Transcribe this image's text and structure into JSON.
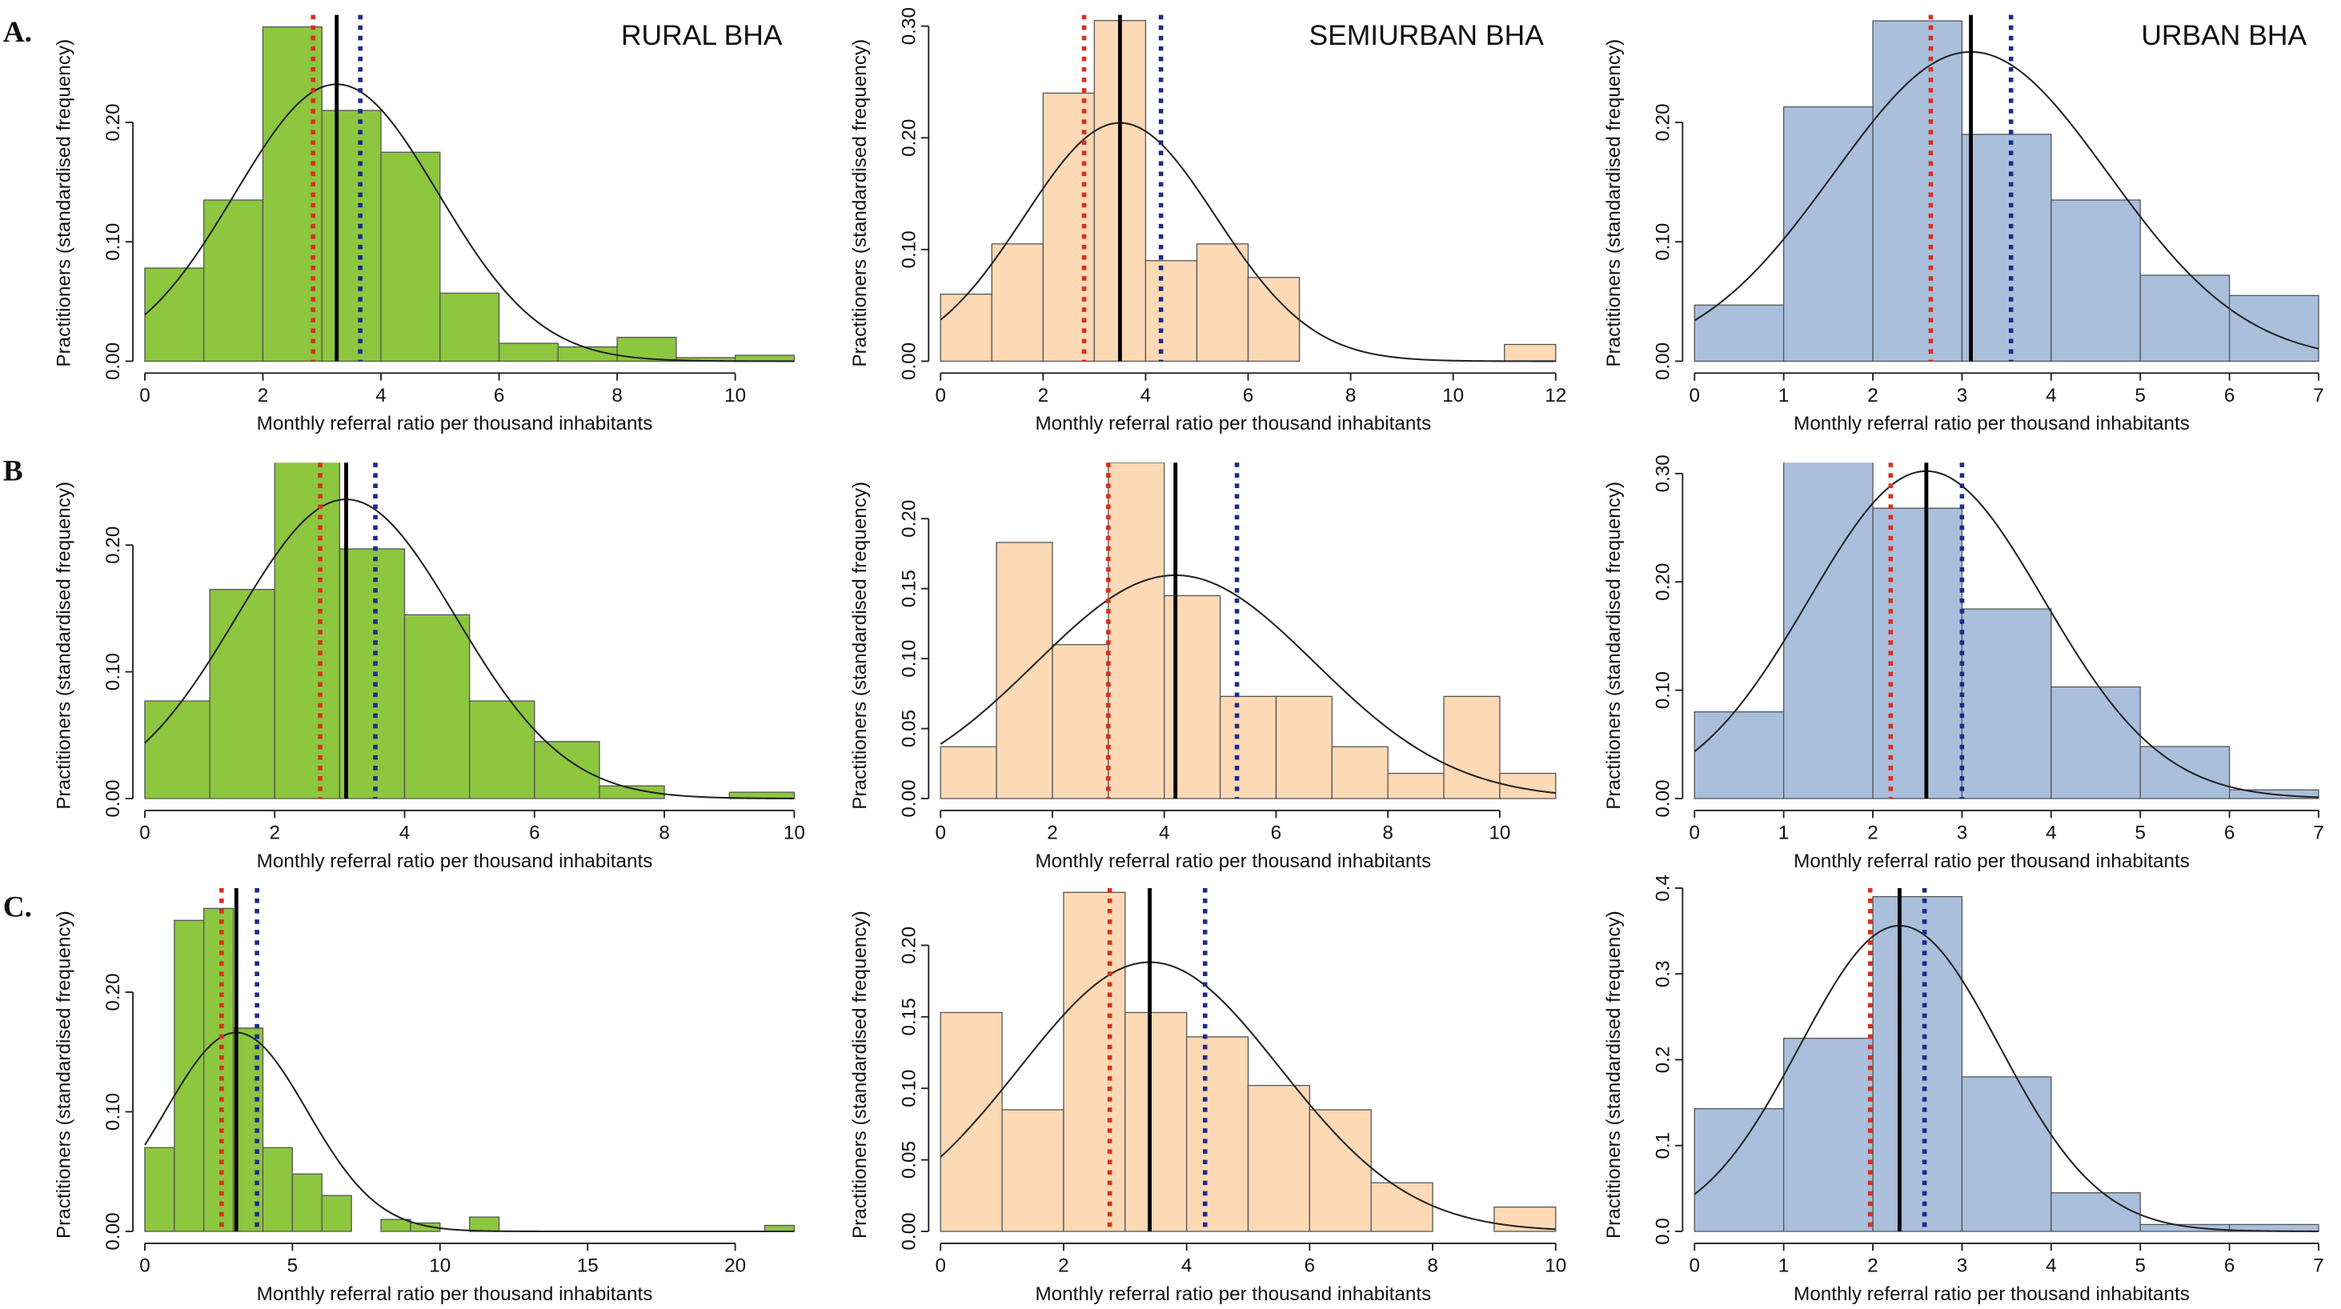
{
  "panels": [
    "A.",
    "B",
    "C."
  ],
  "chart_data": [
    {
      "type": "histogram",
      "title": "RURAL BHA",
      "xlabel": "Monthly referral ratio per thousand inhabitants",
      "ylabel": "Practitioners (standardised frequency)",
      "color": "#8dc63f",
      "bins": [
        0,
        1,
        2,
        3,
        4,
        5,
        6,
        7,
        8,
        9,
        10,
        11
      ],
      "values": [
        0.078,
        0.135,
        0.28,
        0.21,
        0.175,
        0.057,
        0.015,
        0.012,
        0.02,
        0.003,
        0.005
      ],
      "xlim": [
        0,
        11
      ],
      "xticks": [
        0,
        2,
        4,
        6,
        8,
        10
      ],
      "ylim": [
        0,
        0.29
      ],
      "yticks": [
        {
          "value": 0,
          "label": "0.00"
        },
        {
          "value": 0.1,
          "label": "0.10"
        },
        {
          "value": 0.2,
          "label": "0.20"
        }
      ],
      "reference_lines": [
        {
          "color": "#d7301f",
          "x": 2.85,
          "dotted": true
        },
        {
          "color": "#000000",
          "x": 3.25,
          "dotted": false
        },
        {
          "color": "#1f2a8a",
          "x": 3.65,
          "dotted": true
        }
      ],
      "normal_curve": {
        "mean": 3.25,
        "sd": 1.72
      }
    },
    {
      "type": "histogram",
      "title": "SEMIURBAN BHA",
      "xlabel": "Monthly referral ratio per thousand inhabitants",
      "ylabel": "Practitioners (standardised frequency)",
      "color": "#fdd9b5",
      "bins": [
        0,
        1,
        2,
        3,
        4,
        5,
        6,
        7,
        8,
        9,
        10,
        11,
        12
      ],
      "values": [
        0.06,
        0.105,
        0.24,
        0.305,
        0.09,
        0.105,
        0.075,
        0,
        0,
        0,
        0,
        0.015
      ],
      "xlim": [
        0,
        12
      ],
      "xticks": [
        0,
        2,
        4,
        6,
        8,
        10,
        12
      ],
      "ylim": [
        0,
        0.31
      ],
      "yticks": [
        {
          "value": 0,
          "label": "0.00"
        },
        {
          "value": 0.1,
          "label": "0.10"
        },
        {
          "value": 0.2,
          "label": "0.20"
        },
        {
          "value": 0.3,
          "label": "0.30"
        }
      ],
      "reference_lines": [
        {
          "color": "#d7301f",
          "x": 2.8,
          "dotted": true
        },
        {
          "color": "#000000",
          "x": 3.5,
          "dotted": false
        },
        {
          "color": "#1f2a8a",
          "x": 4.3,
          "dotted": true
        }
      ],
      "normal_curve": {
        "mean": 3.5,
        "sd": 1.87
      }
    },
    {
      "type": "histogram",
      "title": "URBAN BHA",
      "xlabel": "Monthly referral ratio per thousand inhabitants",
      "ylabel": "Practitioners (standardised frequency)",
      "color": "#a9bfdc",
      "bins": [
        0,
        1,
        2,
        3,
        4,
        5,
        6,
        7
      ],
      "values": [
        0.047,
        0.213,
        0.285,
        0.19,
        0.135,
        0.072,
        0.055
      ],
      "xlim": [
        0,
        7
      ],
      "xticks": [
        0,
        1,
        2,
        3,
        4,
        5,
        6,
        7
      ],
      "ylim": [
        0,
        0.29
      ],
      "yticks": [
        {
          "value": 0,
          "label": "0.00"
        },
        {
          "value": 0.1,
          "label": "0.10"
        },
        {
          "value": 0.2,
          "label": "0.20"
        }
      ],
      "reference_lines": [
        {
          "color": "#d7301f",
          "x": 2.65,
          "dotted": true
        },
        {
          "color": "#000000",
          "x": 3.1,
          "dotted": false
        },
        {
          "color": "#1f2a8a",
          "x": 3.55,
          "dotted": true
        }
      ],
      "normal_curve": {
        "mean": 3.1,
        "sd": 1.54
      }
    },
    {
      "type": "histogram",
      "xlabel": "Monthly referral ratio per thousand inhabitants",
      "ylabel": "Practitioners (standardised frequency)",
      "color": "#8dc63f",
      "bins": [
        0,
        1,
        2,
        3,
        4,
        5,
        6,
        7,
        8,
        9,
        10
      ],
      "values": [
        0.077,
        0.165,
        0.27,
        0.197,
        0.145,
        0.077,
        0.045,
        0.01,
        0,
        0.005
      ],
      "xlim": [
        0,
        10
      ],
      "xticks": [
        0,
        2,
        4,
        6,
        8,
        10
      ],
      "ylim": [
        0,
        0.265
      ],
      "yticks": [
        {
          "value": 0,
          "label": "0.00"
        },
        {
          "value": 0.1,
          "label": "0.10"
        },
        {
          "value": 0.2,
          "label": "0.20"
        }
      ],
      "reference_lines": [
        {
          "color": "#d7301f",
          "x": 2.7,
          "dotted": true
        },
        {
          "color": "#000000",
          "x": 3.1,
          "dotted": false
        },
        {
          "color": "#1f2a8a",
          "x": 3.55,
          "dotted": true
        }
      ],
      "normal_curve": {
        "mean": 3.1,
        "sd": 1.69
      }
    },
    {
      "type": "histogram",
      "xlabel": "Monthly referral ratio per thousand inhabitants",
      "ylabel": "Practitioners (standardised frequency)",
      "color": "#fdd9b5",
      "bins": [
        0,
        1,
        2,
        3,
        4,
        5,
        6,
        7,
        8,
        9,
        10,
        11
      ],
      "values": [
        0.037,
        0.183,
        0.11,
        0.24,
        0.145,
        0.073,
        0.073,
        0.037,
        0.018,
        0.073,
        0.018
      ],
      "xlim": [
        0,
        11
      ],
      "xticks": [
        0,
        2,
        4,
        6,
        8,
        10
      ],
      "ylim": [
        0,
        0.24
      ],
      "yticks": [
        {
          "value": 0,
          "label": "0.00"
        },
        {
          "value": 0.05,
          "label": "0.05"
        },
        {
          "value": 0.1,
          "label": "0.10"
        },
        {
          "value": 0.15,
          "label": "0.15"
        },
        {
          "value": 0.2,
          "label": "0.20"
        }
      ],
      "reference_lines": [
        {
          "color": "#d7301f",
          "x": 3.0,
          "dotted": true
        },
        {
          "color": "#000000",
          "x": 4.2,
          "dotted": false
        },
        {
          "color": "#1f2a8a",
          "x": 5.3,
          "dotted": true
        }
      ],
      "normal_curve": {
        "mean": 4.2,
        "sd": 2.5
      }
    },
    {
      "type": "histogram",
      "xlabel": "Monthly referral ratio per thousand inhabitants",
      "ylabel": "Practitioners (standardised frequency)",
      "color": "#a9bfdc",
      "bins": [
        0,
        1,
        2,
        3,
        4,
        5,
        6,
        7
      ],
      "values": [
        0.08,
        0.32,
        0.268,
        0.175,
        0.103,
        0.048,
        0.008
      ],
      "xlim": [
        0,
        7
      ],
      "xticks": [
        0,
        1,
        2,
        3,
        4,
        5,
        6,
        7
      ],
      "ylim": [
        0,
        0.31
      ],
      "yticks": [
        {
          "value": 0,
          "label": "0.00"
        },
        {
          "value": 0.1,
          "label": "0.10"
        },
        {
          "value": 0.2,
          "label": "0.20"
        },
        {
          "value": 0.3,
          "label": "0.30"
        }
      ],
      "reference_lines": [
        {
          "color": "#d7301f",
          "x": 2.2,
          "dotted": true
        },
        {
          "color": "#000000",
          "x": 2.6,
          "dotted": false
        },
        {
          "color": "#1f2a8a",
          "x": 3.0,
          "dotted": true
        }
      ],
      "normal_curve": {
        "mean": 2.6,
        "sd": 1.32
      }
    },
    {
      "type": "histogram",
      "xlabel": "Monthly referral ratio per thousand inhabitants",
      "ylabel": "Practitioners (standardised frequency)",
      "color": "#8dc63f",
      "bins": [
        0,
        1,
        2,
        3,
        4,
        5,
        6,
        7,
        8,
        9,
        10,
        11,
        12,
        13,
        14,
        15,
        16,
        17,
        18,
        19,
        20,
        21,
        22
      ],
      "values": [
        0.07,
        0.26,
        0.27,
        0.17,
        0.07,
        0.048,
        0.03,
        0,
        0.01,
        0.007,
        0,
        0.012,
        0,
        0,
        0,
        0,
        0,
        0,
        0,
        0,
        0,
        0.005
      ],
      "xlim": [
        0,
        22
      ],
      "xticks": [
        0,
        5,
        10,
        15,
        20
      ],
      "ylim": [
        0,
        0.287
      ],
      "yticks": [
        {
          "value": 0,
          "label": "0.00"
        },
        {
          "value": 0.1,
          "label": "0.10"
        },
        {
          "value": 0.2,
          "label": "0.20"
        }
      ],
      "reference_lines": [
        {
          "color": "#d7301f",
          "x": 2.6,
          "dotted": true
        },
        {
          "color": "#000000",
          "x": 3.1,
          "dotted": false
        },
        {
          "color": "#1f2a8a",
          "x": 3.8,
          "dotted": true
        }
      ],
      "normal_curve": {
        "mean": 3.1,
        "sd": 2.4
      }
    },
    {
      "type": "histogram",
      "xlabel": "Monthly referral ratio per thousand inhabitants",
      "ylabel": "Practitioners (standardised frequency)",
      "color": "#fdd9b5",
      "bins": [
        0,
        1,
        2,
        3,
        4,
        5,
        6,
        7,
        8,
        9,
        10
      ],
      "values": [
        0.153,
        0.085,
        0.237,
        0.153,
        0.136,
        0.102,
        0.085,
        0.034,
        0,
        0.017
      ],
      "xlim": [
        0,
        10
      ],
      "xticks": [
        0,
        2,
        4,
        6,
        8,
        10
      ],
      "ylim": [
        0,
        0.24
      ],
      "yticks": [
        {
          "value": 0,
          "label": "0.00"
        },
        {
          "value": 0.05,
          "label": "0.05"
        },
        {
          "value": 0.1,
          "label": "0.10"
        },
        {
          "value": 0.15,
          "label": "0.15"
        },
        {
          "value": 0.2,
          "label": "0.20"
        }
      ],
      "reference_lines": [
        {
          "color": "#d7301f",
          "x": 2.75,
          "dotted": true
        },
        {
          "color": "#000000",
          "x": 3.4,
          "dotted": false
        },
        {
          "color": "#1f2a8a",
          "x": 4.3,
          "dotted": true
        }
      ],
      "normal_curve": {
        "mean": 3.4,
        "sd": 2.12
      }
    },
    {
      "type": "histogram",
      "xlabel": "Monthly referral ratio per thousand inhabitants",
      "ylabel": "Practitioners (standardised frequency)",
      "color": "#a9bfdc",
      "bins": [
        0,
        1,
        2,
        3,
        4,
        5,
        6,
        7
      ],
      "values": [
        0.143,
        0.225,
        0.39,
        0.18,
        0.045,
        0.008,
        0.008
      ],
      "xlim": [
        0,
        7
      ],
      "xticks": [
        0,
        1,
        2,
        3,
        4,
        5,
        6,
        7
      ],
      "ylim": [
        0,
        0.4
      ],
      "yticks": [
        {
          "value": 0,
          "label": "0.0"
        },
        {
          "value": 0.1,
          "label": "0.1"
        },
        {
          "value": 0.2,
          "label": "0.2"
        },
        {
          "value": 0.3,
          "label": "0.3"
        },
        {
          "value": 0.4,
          "label": "0.4"
        }
      ],
      "reference_lines": [
        {
          "color": "#d7301f",
          "x": 1.97,
          "dotted": true
        },
        {
          "color": "#000000",
          "x": 2.3,
          "dotted": false
        },
        {
          "color": "#1f2a8a",
          "x": 2.58,
          "dotted": true
        }
      ],
      "normal_curve": {
        "mean": 2.3,
        "sd": 1.12
      }
    }
  ]
}
